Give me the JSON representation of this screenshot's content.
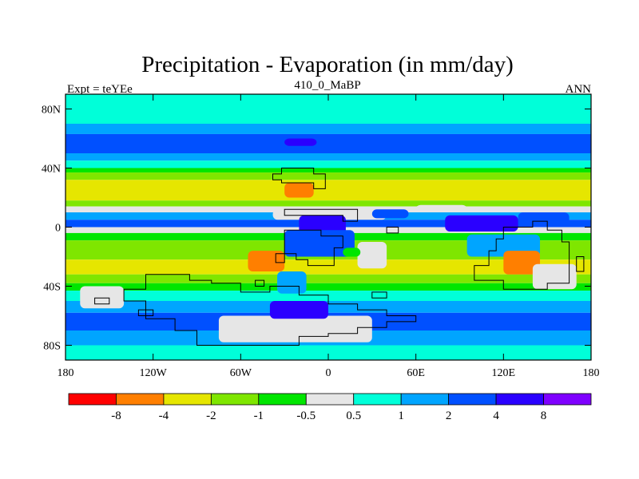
{
  "chart_data": {
    "type": "heatmap",
    "title": "Precipitation - Evaporation (in mm/day)",
    "subtitle": "410_0_MaBP",
    "left_label": "Expt = teYEe",
    "right_label": "ANN",
    "x_ticks": [
      "180",
      "120W",
      "60W",
      "0",
      "60E",
      "120E",
      "180"
    ],
    "x_tick_values": [
      -180,
      -120,
      -60,
      0,
      60,
      120,
      180
    ],
    "y_ticks": [
      "80N",
      "40N",
      "0",
      "40S",
      "80S"
    ],
    "y_tick_values": [
      80,
      40,
      0,
      -40,
      -80
    ],
    "xlim": [
      -180,
      180
    ],
    "ylim": [
      -90,
      90
    ],
    "colorbar": {
      "levels": [
        "-8",
        "-4",
        "-2",
        "-1",
        "-0.5",
        "0.5",
        "1",
        "2",
        "4",
        "8"
      ],
      "colors": [
        "#ff0000",
        "#ff7f00",
        "#e6e600",
        "#7fe600",
        "#00e600",
        "#e6e6e6",
        "#00ffd9",
        "#00a5ff",
        "#0050ff",
        "#2a00ff",
        "#7f00ff"
      ]
    },
    "zonal_bands": [
      {
        "lat": [
          70,
          90
        ],
        "class": 6
      },
      {
        "lat": [
          63,
          70
        ],
        "class": 7
      },
      {
        "lat": [
          50,
          63
        ],
        "class": 8
      },
      {
        "lat": [
          45,
          50
        ],
        "class": 7
      },
      {
        "lat": [
          40,
          45
        ],
        "class": 6
      },
      {
        "lat": [
          37,
          40
        ],
        "class": 4
      },
      {
        "lat": [
          32,
          37
        ],
        "class": 3
      },
      {
        "lat": [
          18,
          32
        ],
        "class": 2
      },
      {
        "lat": [
          14,
          18
        ],
        "class": 3
      },
      {
        "lat": [
          10,
          14
        ],
        "class": 5
      },
      {
        "lat": [
          5,
          10
        ],
        "class": 7
      },
      {
        "lat": [
          0,
          5
        ],
        "class": 8
      },
      {
        "lat": [
          -4,
          0
        ],
        "class": 5
      },
      {
        "lat": [
          -9,
          -4
        ],
        "class": 4
      },
      {
        "lat": [
          -22,
          -9
        ],
        "class": 3
      },
      {
        "lat": [
          -32,
          -22
        ],
        "class": 2
      },
      {
        "lat": [
          -38,
          -32
        ],
        "class": 3
      },
      {
        "lat": [
          -43,
          -38
        ],
        "class": 4
      },
      {
        "lat": [
          -50,
          -43
        ],
        "class": 6
      },
      {
        "lat": [
          -58,
          -50
        ],
        "class": 7
      },
      {
        "lat": [
          -70,
          -58
        ],
        "class": 8
      },
      {
        "lat": [
          -80,
          -70
        ],
        "class": 7
      },
      {
        "lat": [
          -90,
          -80
        ],
        "class": 6
      }
    ],
    "regions": [
      {
        "lon": [
          -35,
          0
        ],
        "lat": [
          52,
          62
        ],
        "class": 8
      },
      {
        "lon": [
          -30,
          -8
        ],
        "lat": [
          55,
          60
        ],
        "class": 9
      },
      {
        "lon": [
          -30,
          -10
        ],
        "lat": [
          20,
          30
        ],
        "class": 1
      },
      {
        "lon": [
          -38,
          40
        ],
        "lat": [
          5,
          12
        ],
        "class": 5
      },
      {
        "lon": [
          30,
          55
        ],
        "lat": [
          6,
          12
        ],
        "class": 8
      },
      {
        "lon": [
          60,
          95
        ],
        "lat": [
          10,
          15
        ],
        "class": 5
      },
      {
        "lon": [
          80,
          130
        ],
        "lat": [
          -3,
          8
        ],
        "class": 9
      },
      {
        "lon": [
          130,
          165
        ],
        "lat": [
          0,
          10
        ],
        "class": 8
      },
      {
        "lon": [
          -20,
          12
        ],
        "lat": [
          -10,
          8
        ],
        "class": 9
      },
      {
        "lon": [
          -30,
          18
        ],
        "lat": [
          -20,
          -2
        ],
        "class": 8
      },
      {
        "lon": [
          -55,
          -30
        ],
        "lat": [
          -30,
          -16
        ],
        "class": 1
      },
      {
        "lon": [
          -35,
          -15
        ],
        "lat": [
          -45,
          -30
        ],
        "class": 7
      },
      {
        "lon": [
          20,
          40
        ],
        "lat": [
          -28,
          -10
        ],
        "class": 5
      },
      {
        "lon": [
          10,
          22
        ],
        "lat": [
          -20,
          -14
        ],
        "class": 4
      },
      {
        "lon": [
          95,
          145
        ],
        "lat": [
          -20,
          -5
        ],
        "class": 7
      },
      {
        "lon": [
          120,
          145
        ],
        "lat": [
          -32,
          -16
        ],
        "class": 1
      },
      {
        "lon": [
          140,
          170
        ],
        "lat": [
          -42,
          -25
        ],
        "class": 5
      },
      {
        "lon": [
          -75,
          30
        ],
        "lat": [
          -78,
          -60
        ],
        "class": 5
      },
      {
        "lon": [
          -40,
          0
        ],
        "lat": [
          -62,
          -50
        ],
        "class": 9
      },
      {
        "lon": [
          -170,
          -140
        ],
        "lat": [
          -55,
          -40
        ],
        "class": 5
      }
    ]
  }
}
